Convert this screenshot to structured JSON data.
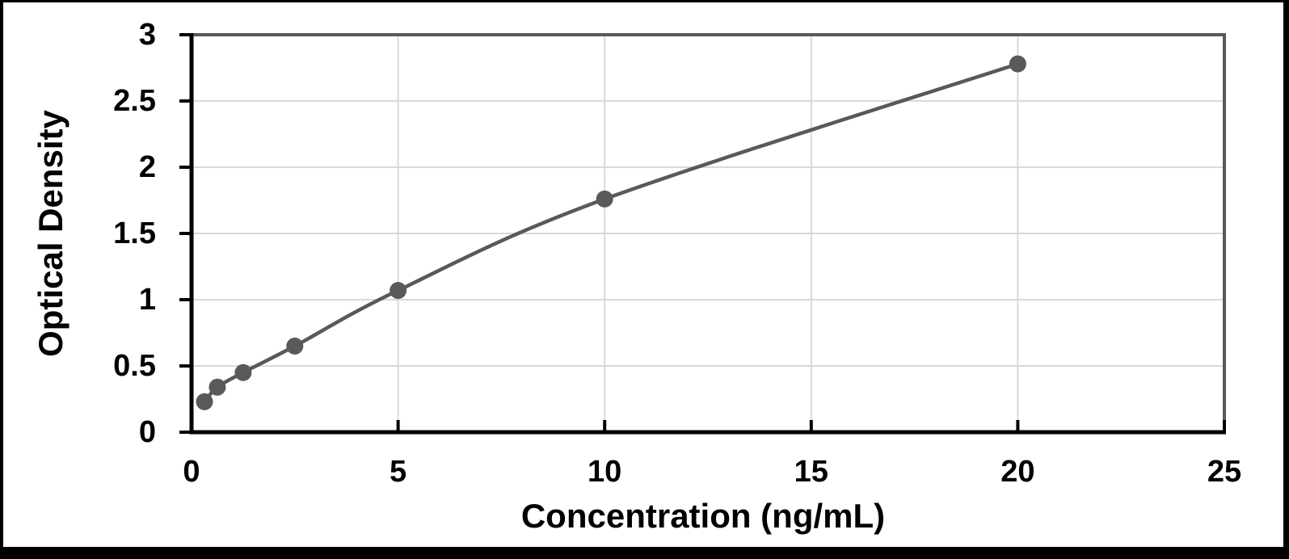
{
  "chart_data": {
    "type": "line",
    "xlabel": "Concentration (ng/mL)",
    "ylabel": "Optical Density",
    "x": [
      0.313,
      0.625,
      1.25,
      2.5,
      5,
      10,
      20
    ],
    "y": [
      0.23,
      0.34,
      0.45,
      0.65,
      1.07,
      1.76,
      2.78
    ],
    "xlim": [
      0,
      25
    ],
    "ylim": [
      0,
      3
    ],
    "x_ticks": [
      0,
      5,
      10,
      15,
      20,
      25
    ],
    "x_tick_labels": [
      "0",
      "5",
      "10",
      "15",
      "20",
      "25"
    ],
    "y_ticks": [
      0,
      0.5,
      1,
      1.5,
      2,
      2.5,
      3
    ],
    "y_tick_labels": [
      "0",
      "0.5",
      "1",
      "1.5",
      "2",
      "2.5",
      "3"
    ],
    "grid": true,
    "legend": false,
    "smooth": true,
    "marker": "circle"
  },
  "styles": {
    "series_color": "#595959",
    "marker_color": "#595959",
    "gridline_color": "#d9d9d9",
    "axis_color": "#000000",
    "plot_border_color": "#595959",
    "frame_color": "#000000",
    "background": "#ffffff"
  }
}
